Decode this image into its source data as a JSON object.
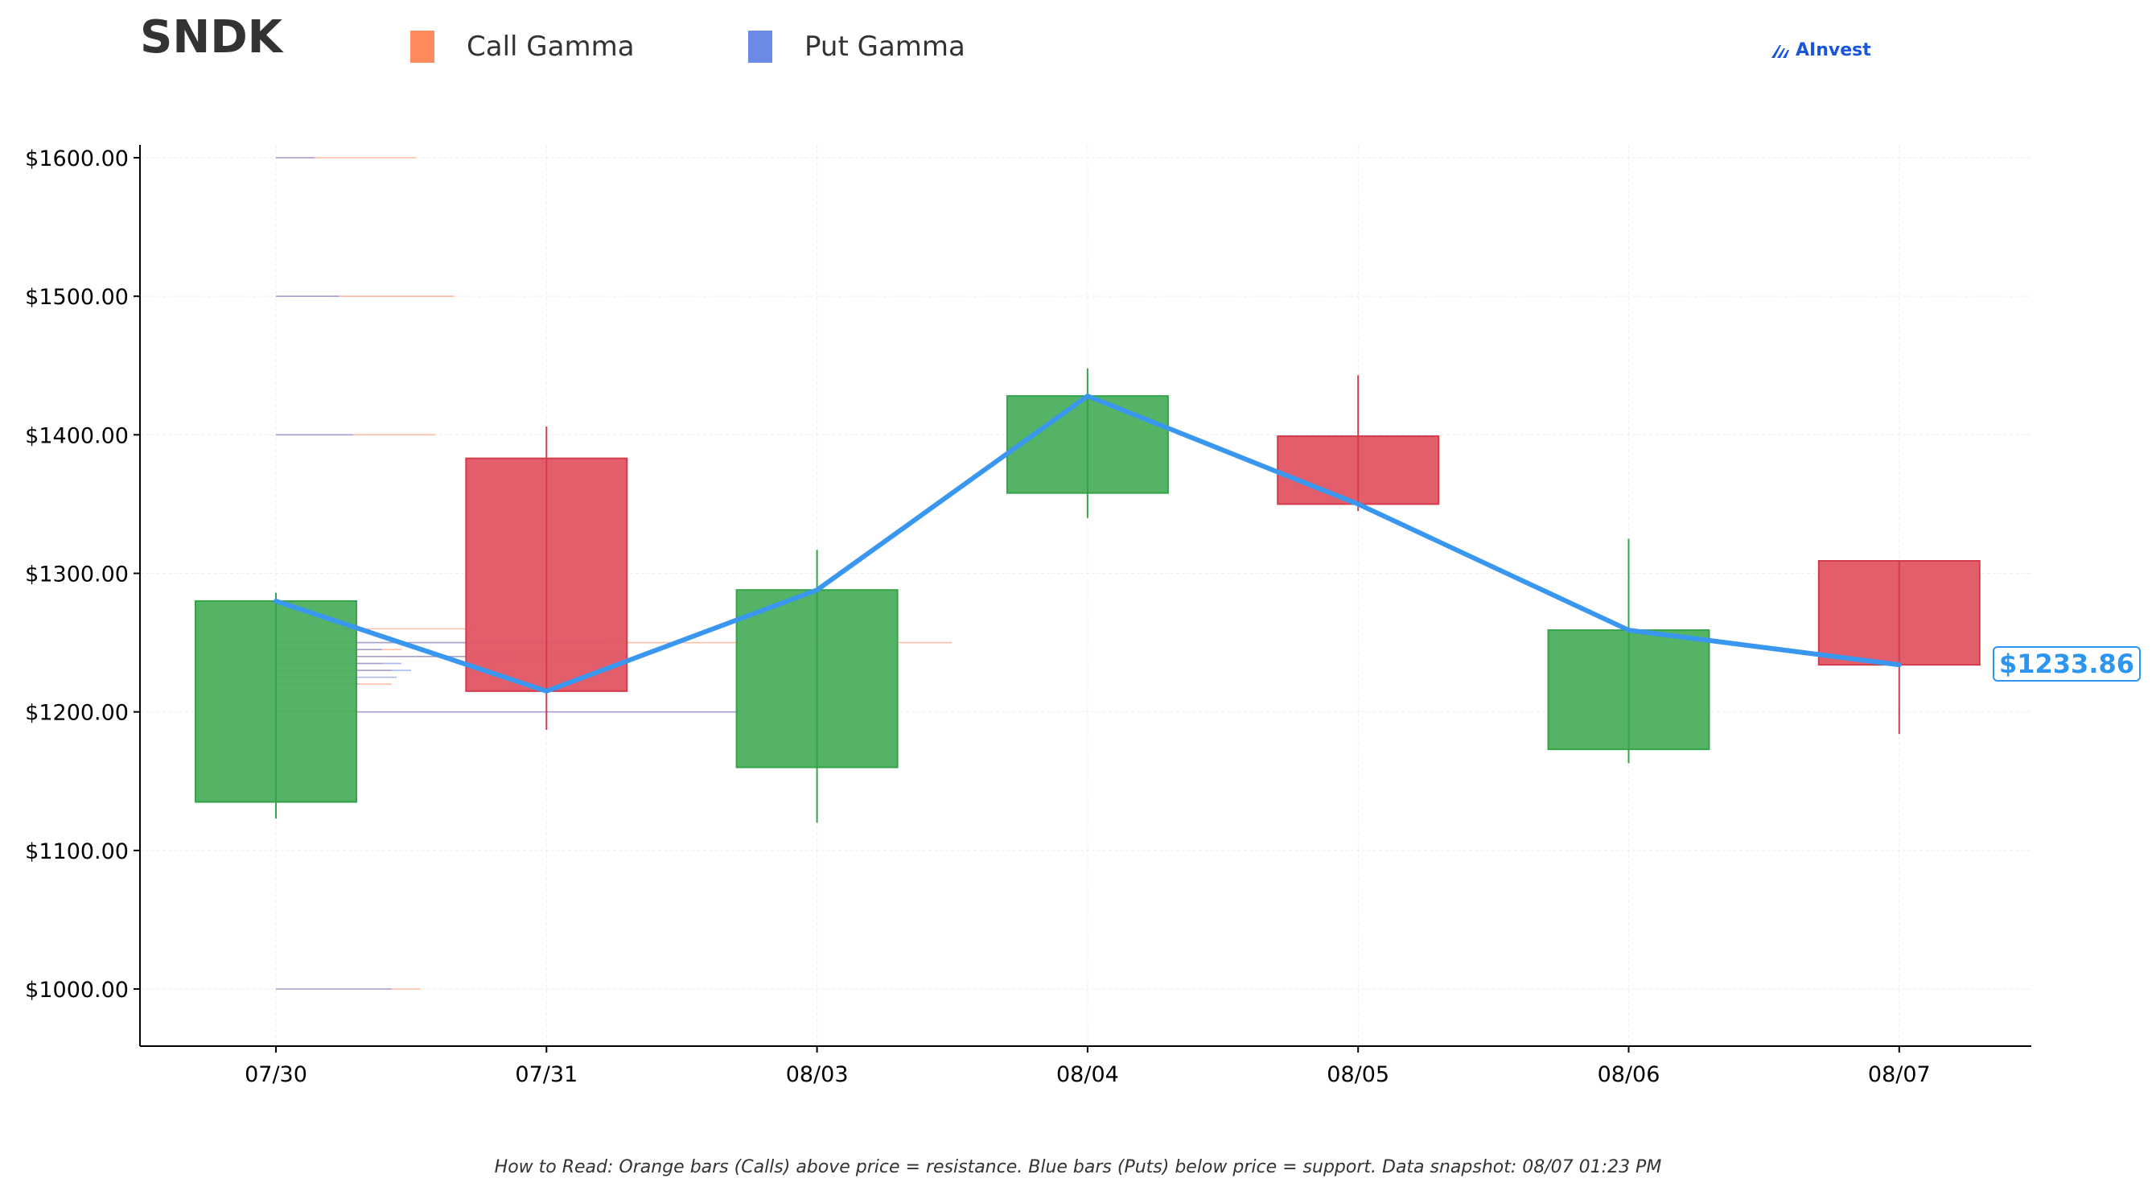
{
  "header": {
    "ticker": "SNDK",
    "legend": [
      {
        "label": "Call Gamma",
        "color": "#ff8a5c"
      },
      {
        "label": "Put Gamma",
        "color": "#6b8ae8"
      }
    ],
    "brand": "AInvest"
  },
  "footnote": "How to Read: Orange bars (Calls) above price = resistance. Blue bars (Puts) below price = support. Data snapshot: 08/07 01:23 PM",
  "price_label": "$1233.86",
  "colors": {
    "up": "#4caf5e",
    "down": "#e05563",
    "line": "#3a97ef",
    "call": "#ff8a5c",
    "put": "#6b8ae8",
    "grid": "#eeeeee",
    "axis": "#000000"
  },
  "chart_data": {
    "type": "candlestick",
    "title": "SNDK",
    "ylim": [
      960,
      1610
    ],
    "y_ticks": [
      1000,
      1100,
      1200,
      1300,
      1400,
      1500,
      1600
    ],
    "y_tick_labels": [
      "$1000.00",
      "$1100.00",
      "$1200.00",
      "$1300.00",
      "$1400.00",
      "$1500.00",
      "$1600.00"
    ],
    "grid": true,
    "categories": [
      "07/30",
      "07/31",
      "08/03",
      "08/04",
      "08/05",
      "08/06",
      "08/07"
    ],
    "candles": [
      {
        "date": "07/30",
        "open": 1135,
        "high": 1286,
        "low": 1123,
        "close": 1280
      },
      {
        "date": "07/31",
        "open": 1383,
        "high": 1406,
        "low": 1187,
        "close": 1215
      },
      {
        "date": "08/03",
        "open": 1160,
        "high": 1317,
        "low": 1120,
        "close": 1288
      },
      {
        "date": "08/04",
        "open": 1358,
        "high": 1448,
        "low": 1340,
        "close": 1428
      },
      {
        "date": "08/05",
        "open": 1399,
        "high": 1443,
        "low": 1345,
        "close": 1350
      },
      {
        "date": "08/06",
        "open": 1173,
        "high": 1325,
        "low": 1163,
        "close": 1259
      },
      {
        "date": "08/07",
        "open": 1309,
        "high": 1309,
        "low": 1184,
        "close": 1234
      }
    ],
    "close_line": [
      1280,
      1215,
      1288,
      1428,
      1350,
      1259,
      1234
    ],
    "last_price": 1233.86,
    "gamma_levels": [
      {
        "strike": 1600,
        "call": 2.9,
        "put": 0.8
      },
      {
        "strike": 1500,
        "call": 3.7,
        "put": 1.3
      },
      {
        "strike": 1400,
        "call": 3.3,
        "put": 1.6
      },
      {
        "strike": 1260,
        "call": 4.1,
        "put": 1.5
      },
      {
        "strike": 1250,
        "call": 14.0,
        "put": 6.8
      },
      {
        "strike": 1245,
        "call": 2.6,
        "put": 2.2
      },
      {
        "strike": 1240,
        "call": 7.3,
        "put": 5.0
      },
      {
        "strike": 1235,
        "call": 2.2,
        "put": 2.6
      },
      {
        "strike": 1230,
        "call": 2.4,
        "put": 2.8
      },
      {
        "strike": 1225,
        "call": 1.6,
        "put": 2.5
      },
      {
        "strike": 1220,
        "call": 2.4,
        "put": 1.7
      },
      {
        "strike": 1200,
        "call": 12.2,
        "put": 9.6
      },
      {
        "strike": 1000,
        "call": 3.0,
        "put": 2.4
      }
    ],
    "legend": [
      "Call Gamma",
      "Put Gamma"
    ],
    "legend_position": "top"
  }
}
